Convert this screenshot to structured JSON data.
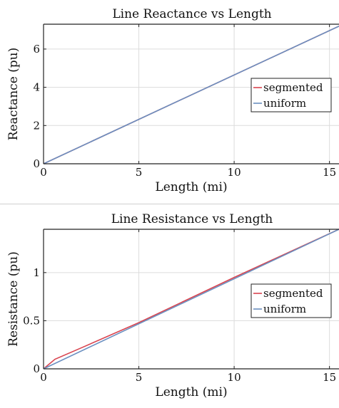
{
  "chart_data": [
    {
      "type": "line",
      "title": "Line Reactance vs Length",
      "xlabel": "Length (mi)",
      "ylabel": "Reactance (pu)",
      "xlim": [
        0,
        15.5
      ],
      "ylim": [
        0,
        7.3
      ],
      "xticks": [
        0,
        5,
        10,
        15
      ],
      "yticks": [
        0,
        2,
        4,
        6
      ],
      "xtick_labels": [
        "0",
        "5",
        "10",
        "15"
      ],
      "ytick_labels": [
        "0",
        "2",
        "4",
        "6"
      ],
      "grid": true,
      "legend_position": "middle-right",
      "series": [
        {
          "name": "segmented",
          "color": "#d9444f",
          "x": [
            0,
            15.5
          ],
          "y": [
            0,
            7.2
          ]
        },
        {
          "name": "uniform",
          "color": "#6a8fc0",
          "x": [
            0,
            15.5
          ],
          "y": [
            0,
            7.2
          ]
        }
      ]
    },
    {
      "type": "line",
      "title": "Line Resistance vs Length",
      "xlabel": "Length (mi)",
      "ylabel": "Resistance (pu)",
      "xlim": [
        0,
        15.5
      ],
      "ylim": [
        0,
        1.45
      ],
      "xticks": [
        0,
        5,
        10,
        15
      ],
      "yticks": [
        0,
        0.5,
        1
      ],
      "xtick_labels": [
        "0",
        "5",
        "10",
        "15"
      ],
      "ytick_labels": [
        "0",
        "0.5",
        "1"
      ],
      "grid": true,
      "legend_position": "middle-right",
      "series": [
        {
          "name": "segmented",
          "color": "#d9444f",
          "x": [
            0,
            0.6,
            2,
            5,
            10,
            15.5
          ],
          "y": [
            0,
            0.1,
            0.22,
            0.48,
            0.95,
            1.45
          ]
        },
        {
          "name": "uniform",
          "color": "#6a8fc0",
          "x": [
            0,
            15.5
          ],
          "y": [
            0,
            1.45
          ]
        }
      ]
    }
  ]
}
